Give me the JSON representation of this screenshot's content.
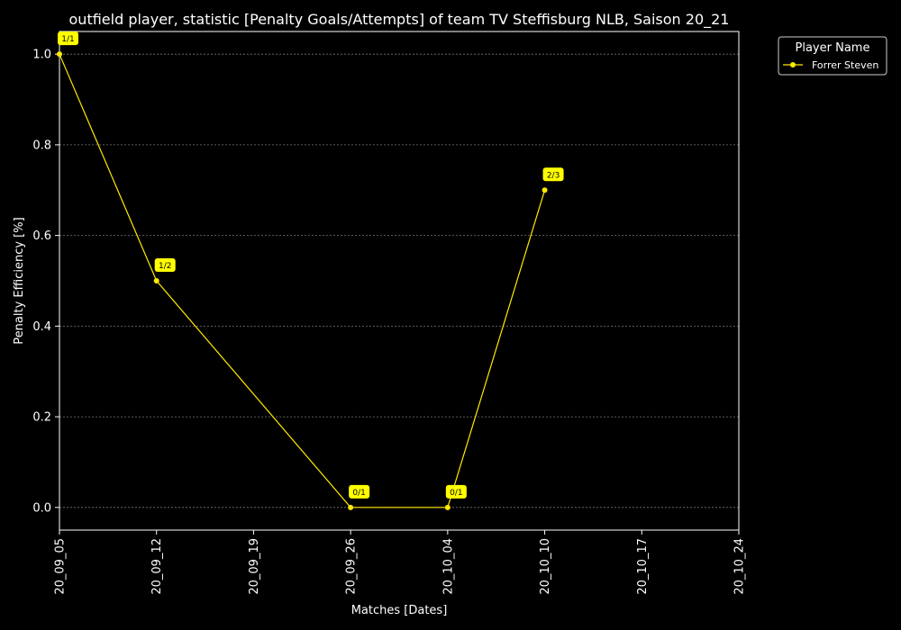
{
  "chart_data": {
    "type": "line",
    "title": "outfield player, statistic [Penalty Goals/Attempts] of team TV Steffisburg NLB, Saison 20_21",
    "xlabel": "Matches [Dates]",
    "ylabel": "Penalty Efficiency [%]",
    "x_ticks": [
      "20_09_05",
      "20_09_12",
      "20_09_19",
      "20_09_26",
      "20_10_04",
      "20_10_10",
      "20_10_17",
      "20_10_24"
    ],
    "y_ticks": [
      "0.0",
      "0.2",
      "0.4",
      "0.6",
      "0.8",
      "1.0"
    ],
    "ylim": [
      -0.05,
      1.05
    ],
    "grid": "horizontal, dashed",
    "legend": {
      "title": "Player Name",
      "placement": "outside top-right"
    },
    "series": [
      {
        "name": "Forrer Steven",
        "color": "#ffea00",
        "points": [
          {
            "x": "20_09_05",
            "y": 1.0,
            "label": "1/1"
          },
          {
            "x": "20_09_12",
            "y": 0.5,
            "label": "1/2"
          },
          {
            "x": "20_09_26",
            "y": 0.0,
            "label": "0/1"
          },
          {
            "x": "20_10_04",
            "y": 0.0,
            "label": "0/1"
          },
          {
            "x": "20_10_10",
            "y": 0.7,
            "label": "2/3"
          }
        ]
      }
    ]
  },
  "colors": {
    "background": "#000000",
    "foreground": "#ffffff",
    "grid": "#777777",
    "label_box": "#ffff00"
  }
}
